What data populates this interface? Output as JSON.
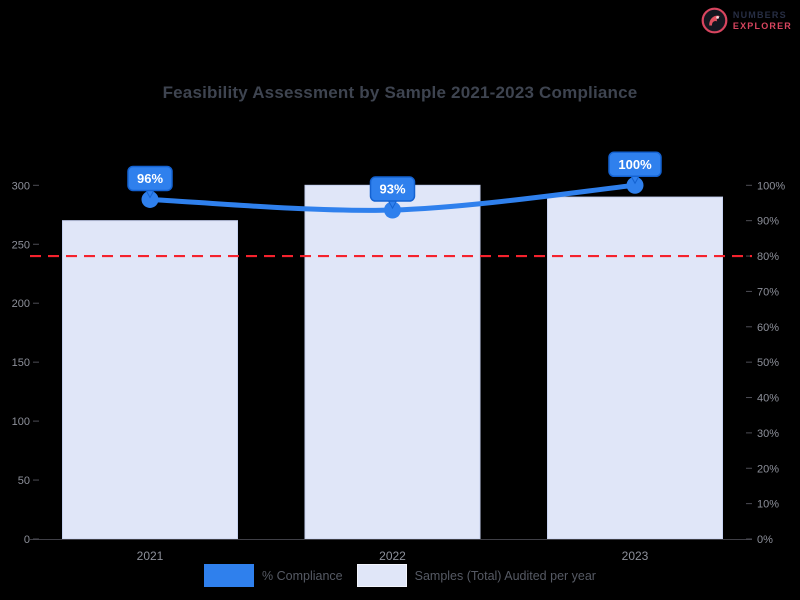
{
  "brand": {
    "top": "NUMBERS",
    "bottom": "EXPLORER"
  },
  "chart_data": {
    "type": "combo",
    "title": "Feasibility Assessment by Sample 2021-2023 Compliance",
    "categories": [
      "2021",
      "2022",
      "2023"
    ],
    "series": [
      {
        "name": "Samples (Total) Audited per year",
        "type": "bar",
        "axis": "left",
        "values": [
          270,
          300,
          290
        ],
        "color": "#e0e6f8",
        "border_color": "#c7d2f0"
      },
      {
        "name": "% Compliance",
        "type": "line",
        "axis": "right",
        "values": [
          96,
          93,
          100
        ],
        "labels": [
          "96%",
          "93%",
          "100%"
        ],
        "color": "#2f80ed",
        "badge_border": "#1462d1",
        "badge_text_color": "#ffffff"
      }
    ],
    "target_line": {
      "value": 80,
      "axis": "right",
      "style": "dashed",
      "color": "#f5222d"
    },
    "axes": {
      "left": {
        "min": 0,
        "max": 300,
        "ticks": [
          "300",
          "250",
          "200",
          "150",
          "100",
          "50",
          "0"
        ]
      },
      "right": {
        "min": 0,
        "max": 100,
        "ticks": [
          "100%",
          "90%",
          "80%",
          "70%",
          "60%",
          "50%",
          "40%",
          "30%",
          "20%",
          "10%",
          "0%"
        ]
      }
    },
    "legend": {
      "position": "bottom",
      "items": [
        {
          "label": "% Compliance",
          "color": "#2f80ed"
        },
        {
          "label": "Samples (Total) Audited per year",
          "color": "#e0e6f8"
        }
      ]
    },
    "grid": false
  }
}
